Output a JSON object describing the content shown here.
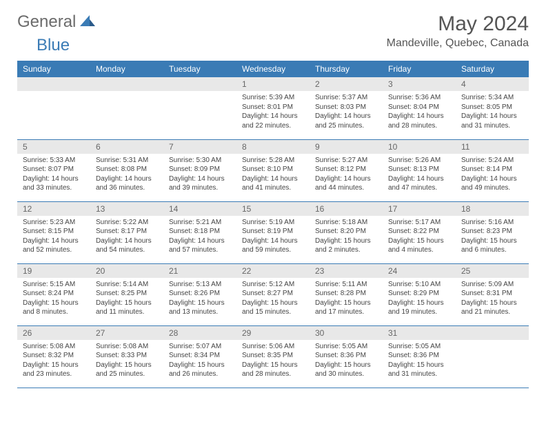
{
  "logo": {
    "text_general": "General",
    "text_blue": "Blue"
  },
  "header": {
    "month_title": "May 2024",
    "location": "Mandeville, Quebec, Canada"
  },
  "colors": {
    "header_blue": "#3a7bb5",
    "logo_gray": "#6b6b6b",
    "day_bg": "#e8e8e8",
    "text": "#444444"
  },
  "weekdays": [
    "Sunday",
    "Monday",
    "Tuesday",
    "Wednesday",
    "Thursday",
    "Friday",
    "Saturday"
  ],
  "weeks": [
    [
      {
        "day": "",
        "sunrise": "",
        "sunset": "",
        "daylight": ""
      },
      {
        "day": "",
        "sunrise": "",
        "sunset": "",
        "daylight": ""
      },
      {
        "day": "",
        "sunrise": "",
        "sunset": "",
        "daylight": ""
      },
      {
        "day": "1",
        "sunrise": "Sunrise: 5:39 AM",
        "sunset": "Sunset: 8:01 PM",
        "daylight": "Daylight: 14 hours and 22 minutes."
      },
      {
        "day": "2",
        "sunrise": "Sunrise: 5:37 AM",
        "sunset": "Sunset: 8:03 PM",
        "daylight": "Daylight: 14 hours and 25 minutes."
      },
      {
        "day": "3",
        "sunrise": "Sunrise: 5:36 AM",
        "sunset": "Sunset: 8:04 PM",
        "daylight": "Daylight: 14 hours and 28 minutes."
      },
      {
        "day": "4",
        "sunrise": "Sunrise: 5:34 AM",
        "sunset": "Sunset: 8:05 PM",
        "daylight": "Daylight: 14 hours and 31 minutes."
      }
    ],
    [
      {
        "day": "5",
        "sunrise": "Sunrise: 5:33 AM",
        "sunset": "Sunset: 8:07 PM",
        "daylight": "Daylight: 14 hours and 33 minutes."
      },
      {
        "day": "6",
        "sunrise": "Sunrise: 5:31 AM",
        "sunset": "Sunset: 8:08 PM",
        "daylight": "Daylight: 14 hours and 36 minutes."
      },
      {
        "day": "7",
        "sunrise": "Sunrise: 5:30 AM",
        "sunset": "Sunset: 8:09 PM",
        "daylight": "Daylight: 14 hours and 39 minutes."
      },
      {
        "day": "8",
        "sunrise": "Sunrise: 5:28 AM",
        "sunset": "Sunset: 8:10 PM",
        "daylight": "Daylight: 14 hours and 41 minutes."
      },
      {
        "day": "9",
        "sunrise": "Sunrise: 5:27 AM",
        "sunset": "Sunset: 8:12 PM",
        "daylight": "Daylight: 14 hours and 44 minutes."
      },
      {
        "day": "10",
        "sunrise": "Sunrise: 5:26 AM",
        "sunset": "Sunset: 8:13 PM",
        "daylight": "Daylight: 14 hours and 47 minutes."
      },
      {
        "day": "11",
        "sunrise": "Sunrise: 5:24 AM",
        "sunset": "Sunset: 8:14 PM",
        "daylight": "Daylight: 14 hours and 49 minutes."
      }
    ],
    [
      {
        "day": "12",
        "sunrise": "Sunrise: 5:23 AM",
        "sunset": "Sunset: 8:15 PM",
        "daylight": "Daylight: 14 hours and 52 minutes."
      },
      {
        "day": "13",
        "sunrise": "Sunrise: 5:22 AM",
        "sunset": "Sunset: 8:17 PM",
        "daylight": "Daylight: 14 hours and 54 minutes."
      },
      {
        "day": "14",
        "sunrise": "Sunrise: 5:21 AM",
        "sunset": "Sunset: 8:18 PM",
        "daylight": "Daylight: 14 hours and 57 minutes."
      },
      {
        "day": "15",
        "sunrise": "Sunrise: 5:19 AM",
        "sunset": "Sunset: 8:19 PM",
        "daylight": "Daylight: 14 hours and 59 minutes."
      },
      {
        "day": "16",
        "sunrise": "Sunrise: 5:18 AM",
        "sunset": "Sunset: 8:20 PM",
        "daylight": "Daylight: 15 hours and 2 minutes."
      },
      {
        "day": "17",
        "sunrise": "Sunrise: 5:17 AM",
        "sunset": "Sunset: 8:22 PM",
        "daylight": "Daylight: 15 hours and 4 minutes."
      },
      {
        "day": "18",
        "sunrise": "Sunrise: 5:16 AM",
        "sunset": "Sunset: 8:23 PM",
        "daylight": "Daylight: 15 hours and 6 minutes."
      }
    ],
    [
      {
        "day": "19",
        "sunrise": "Sunrise: 5:15 AM",
        "sunset": "Sunset: 8:24 PM",
        "daylight": "Daylight: 15 hours and 8 minutes."
      },
      {
        "day": "20",
        "sunrise": "Sunrise: 5:14 AM",
        "sunset": "Sunset: 8:25 PM",
        "daylight": "Daylight: 15 hours and 11 minutes."
      },
      {
        "day": "21",
        "sunrise": "Sunrise: 5:13 AM",
        "sunset": "Sunset: 8:26 PM",
        "daylight": "Daylight: 15 hours and 13 minutes."
      },
      {
        "day": "22",
        "sunrise": "Sunrise: 5:12 AM",
        "sunset": "Sunset: 8:27 PM",
        "daylight": "Daylight: 15 hours and 15 minutes."
      },
      {
        "day": "23",
        "sunrise": "Sunrise: 5:11 AM",
        "sunset": "Sunset: 8:28 PM",
        "daylight": "Daylight: 15 hours and 17 minutes."
      },
      {
        "day": "24",
        "sunrise": "Sunrise: 5:10 AM",
        "sunset": "Sunset: 8:29 PM",
        "daylight": "Daylight: 15 hours and 19 minutes."
      },
      {
        "day": "25",
        "sunrise": "Sunrise: 5:09 AM",
        "sunset": "Sunset: 8:31 PM",
        "daylight": "Daylight: 15 hours and 21 minutes."
      }
    ],
    [
      {
        "day": "26",
        "sunrise": "Sunrise: 5:08 AM",
        "sunset": "Sunset: 8:32 PM",
        "daylight": "Daylight: 15 hours and 23 minutes."
      },
      {
        "day": "27",
        "sunrise": "Sunrise: 5:08 AM",
        "sunset": "Sunset: 8:33 PM",
        "daylight": "Daylight: 15 hours and 25 minutes."
      },
      {
        "day": "28",
        "sunrise": "Sunrise: 5:07 AM",
        "sunset": "Sunset: 8:34 PM",
        "daylight": "Daylight: 15 hours and 26 minutes."
      },
      {
        "day": "29",
        "sunrise": "Sunrise: 5:06 AM",
        "sunset": "Sunset: 8:35 PM",
        "daylight": "Daylight: 15 hours and 28 minutes."
      },
      {
        "day": "30",
        "sunrise": "Sunrise: 5:05 AM",
        "sunset": "Sunset: 8:36 PM",
        "daylight": "Daylight: 15 hours and 30 minutes."
      },
      {
        "day": "31",
        "sunrise": "Sunrise: 5:05 AM",
        "sunset": "Sunset: 8:36 PM",
        "daylight": "Daylight: 15 hours and 31 minutes."
      },
      {
        "day": "",
        "sunrise": "",
        "sunset": "",
        "daylight": ""
      }
    ]
  ]
}
